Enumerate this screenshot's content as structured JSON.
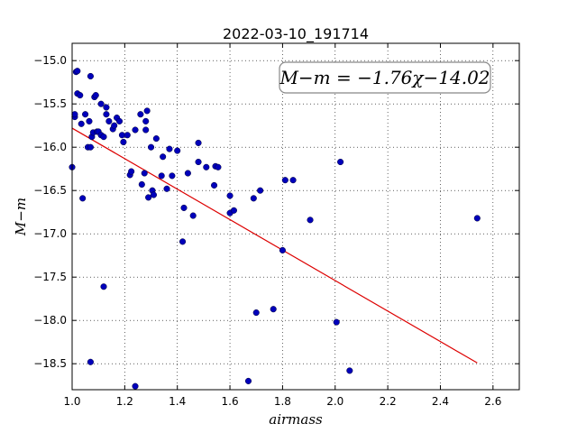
{
  "chart_data": {
    "type": "scatter",
    "title": "2022-03-10_191714",
    "xlabel": "airmass",
    "ylabel": "M−m",
    "xlim": [
      1.0,
      2.7
    ],
    "ylim": [
      -18.8,
      -14.8
    ],
    "x_ticks": [
      1.0,
      1.2,
      1.4,
      1.6,
      1.8,
      2.0,
      2.2,
      2.4,
      2.6
    ],
    "x_tick_labels": [
      "1.0",
      "1.2",
      "1.4",
      "1.6",
      "1.8",
      "2.0",
      "2.2",
      "2.4",
      "2.6"
    ],
    "y_ticks": [
      -15.0,
      -15.5,
      -16.0,
      -16.5,
      -17.0,
      -17.5,
      -18.0,
      -18.5
    ],
    "y_tick_labels": [
      "−15.0",
      "−15.5",
      "−16.0",
      "−16.5",
      "−17.0",
      "−17.5",
      "−18.0",
      "−18.5"
    ],
    "grid": true,
    "annotation": "M−m = −1.76χ−14.02",
    "fit": {
      "slope": -1.76,
      "intercept": -14.02,
      "x_range": [
        1.0,
        2.54
      ],
      "color": "#dd0000"
    },
    "marker_color": "#0000bb",
    "points": [
      [
        1.0,
        -16.23
      ],
      [
        1.01,
        -15.65
      ],
      [
        1.01,
        -15.62
      ],
      [
        1.015,
        -15.13
      ],
      [
        1.02,
        -15.12
      ],
      [
        1.02,
        -15.38
      ],
      [
        1.03,
        -15.4
      ],
      [
        1.035,
        -15.73
      ],
      [
        1.04,
        -16.59
      ],
      [
        1.05,
        -15.62
      ],
      [
        1.06,
        -16.0
      ],
      [
        1.065,
        -15.7
      ],
      [
        1.07,
        -16.0
      ],
      [
        1.07,
        -15.18
      ],
      [
        1.075,
        -15.88
      ],
      [
        1.08,
        -15.83
      ],
      [
        1.085,
        -15.42
      ],
      [
        1.09,
        -15.4
      ],
      [
        1.095,
        -15.82
      ],
      [
        1.1,
        -15.82
      ],
      [
        1.11,
        -15.5
      ],
      [
        1.11,
        -15.86
      ],
      [
        1.12,
        -15.88
      ],
      [
        1.13,
        -15.54
      ],
      [
        1.13,
        -15.62
      ],
      [
        1.14,
        -15.7
      ],
      [
        1.155,
        -15.79
      ],
      [
        1.16,
        -15.75
      ],
      [
        1.17,
        -15.66
      ],
      [
        1.18,
        -15.7
      ],
      [
        1.19,
        -15.86
      ],
      [
        1.195,
        -15.94
      ],
      [
        1.21,
        -15.86
      ],
      [
        1.22,
        -16.32
      ],
      [
        1.225,
        -16.28
      ],
      [
        1.24,
        -15.8
      ],
      [
        1.26,
        -15.62
      ],
      [
        1.265,
        -16.43
      ],
      [
        1.275,
        -16.3
      ],
      [
        1.28,
        -15.7
      ],
      [
        1.28,
        -15.8
      ],
      [
        1.285,
        -15.58
      ],
      [
        1.29,
        -16.58
      ],
      [
        1.3,
        -16.0
      ],
      [
        1.305,
        -16.5
      ],
      [
        1.31,
        -16.55
      ],
      [
        1.32,
        -15.9
      ],
      [
        1.34,
        -16.33
      ],
      [
        1.345,
        -16.11
      ],
      [
        1.36,
        -16.48
      ],
      [
        1.37,
        -16.02
      ],
      [
        1.38,
        -16.33
      ],
      [
        1.4,
        -16.04
      ],
      [
        1.42,
        -17.09
      ],
      [
        1.425,
        -16.7
      ],
      [
        1.44,
        -16.3
      ],
      [
        1.46,
        -16.79
      ],
      [
        1.48,
        -16.17
      ],
      [
        1.48,
        -15.95
      ],
      [
        1.51,
        -16.23
      ],
      [
        1.54,
        -16.44
      ],
      [
        1.545,
        -16.22
      ],
      [
        1.555,
        -16.23
      ],
      [
        1.6,
        -16.76
      ],
      [
        1.6,
        -16.56
      ],
      [
        1.615,
        -16.73
      ],
      [
        1.67,
        -18.7
      ],
      [
        1.69,
        -16.59
      ],
      [
        1.7,
        -17.91
      ],
      [
        1.715,
        -16.5
      ],
      [
        1.765,
        -17.87
      ],
      [
        1.8,
        -17.19
      ],
      [
        1.81,
        -16.38
      ],
      [
        1.84,
        -16.38
      ],
      [
        1.905,
        -16.84
      ],
      [
        2.005,
        -18.02
      ],
      [
        2.02,
        -16.17
      ],
      [
        2.055,
        -18.58
      ],
      [
        2.54,
        -16.82
      ],
      [
        1.12,
        -17.61
      ],
      [
        1.07,
        -18.48
      ],
      [
        1.24,
        -18.76
      ]
    ]
  }
}
